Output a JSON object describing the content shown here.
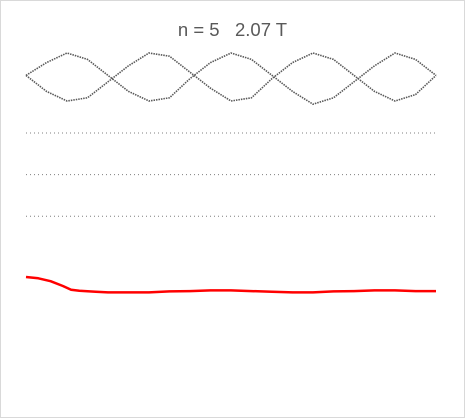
{
  "chart_data": {
    "type": "line",
    "title": "n = 5   2.07 T",
    "xlabel": "",
    "ylabel": "",
    "xlim": [
      0,
      1
    ],
    "ylim": [
      0,
      1
    ],
    "grid": false,
    "legend": "none",
    "colors": {
      "wave": "#595959",
      "dotted": "#7f7f7f",
      "red": "#ff0000"
    },
    "dotted_levels": [
      0.75,
      0.62,
      0.49
    ],
    "wave_series": [
      {
        "x": [
          0.0,
          0.05,
          0.1,
          0.15,
          0.2,
          0.25,
          0.3,
          0.35,
          0.4,
          0.45,
          0.5,
          0.55,
          0.6,
          0.65,
          0.7,
          0.75,
          0.8,
          0.85,
          0.9,
          0.95,
          1.0
        ],
        "y": [
          0.93,
          0.97,
          1.0,
          0.98,
          0.93,
          0.88,
          0.85,
          0.86,
          0.92,
          0.97,
          1.0,
          0.98,
          0.93,
          0.88,
          0.84,
          0.86,
          0.91,
          0.96,
          1.0,
          0.98,
          0.93
        ]
      },
      {
        "x": [
          0.0,
          0.05,
          0.1,
          0.15,
          0.2,
          0.25,
          0.3,
          0.35,
          0.4,
          0.45,
          0.5,
          0.55,
          0.6,
          0.65,
          0.7,
          0.75,
          0.8,
          0.85,
          0.9,
          0.95,
          1.0
        ],
        "y": [
          0.93,
          0.88,
          0.85,
          0.86,
          0.91,
          0.96,
          1.0,
          0.99,
          0.94,
          0.89,
          0.85,
          0.86,
          0.92,
          0.97,
          1.0,
          0.98,
          0.93,
          0.88,
          0.85,
          0.87,
          0.93
        ]
      }
    ],
    "red_series": {
      "x": [
        0.0,
        0.03,
        0.06,
        0.09,
        0.11,
        0.13,
        0.17,
        0.2,
        0.25,
        0.3,
        0.35,
        0.4,
        0.45,
        0.5,
        0.55,
        0.6,
        0.65,
        0.7,
        0.75,
        0.8,
        0.85,
        0.9,
        0.95,
        1.0
      ],
      "y": [
        0.3,
        0.296,
        0.287,
        0.272,
        0.26,
        0.257,
        0.254,
        0.252,
        0.252,
        0.252,
        0.255,
        0.256,
        0.258,
        0.258,
        0.256,
        0.254,
        0.252,
        0.252,
        0.255,
        0.256,
        0.258,
        0.258,
        0.256,
        0.256
      ]
    }
  }
}
